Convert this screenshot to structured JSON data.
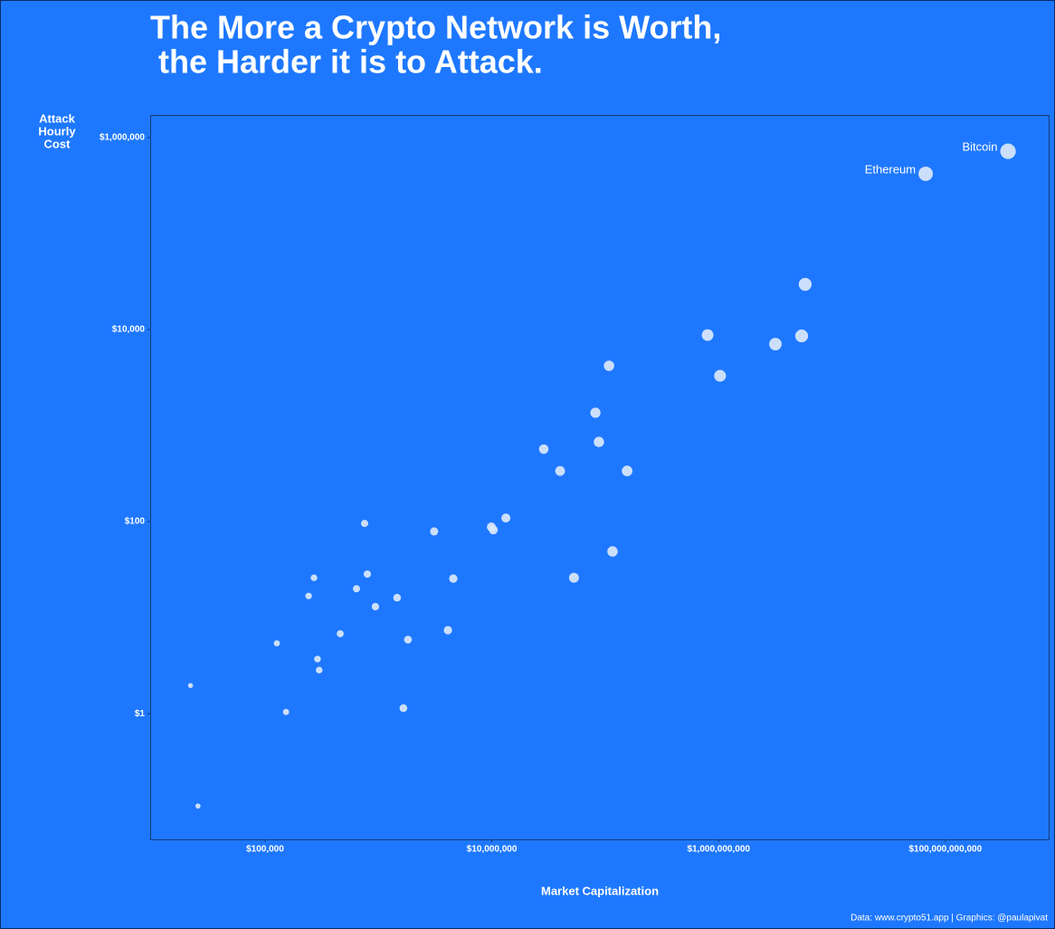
{
  "chart_data": {
    "type": "scatter",
    "title": [
      "The More a Crypto Network is Worth,",
      "the Harder it is to Attack."
    ],
    "ylabel": [
      "Attack",
      "Hourly",
      "Cost"
    ],
    "xlabel": "Market Capitalization",
    "caption": "Data: www.crypto51.app | Graphics: @paulapivat",
    "xlog": true,
    "ylog": true,
    "color": "#dbe8fa",
    "x": [
      357000000000,
      67000000000,
      5800000000,
      800000000,
      3170000000,
      5400000000,
      1030000000,
      108000000,
      82000000,
      88000000,
      28700000,
      40000000,
      156000000,
      13300000,
      9900000,
      10300000,
      116000000,
      53000000,
      3100000,
      4570000,
      755000,
      798000,
      270000,
      242000,
      640000,
      1460000,
      940000,
      4100000,
      460000,
      1820000,
      127000,
      290000,
      300000,
      22000,
      153000,
      1660000,
      25600
    ],
    "y": [
      720000,
      420000,
      29600,
      8770,
      7060,
      8590,
      3300,
      4200,
      1360,
      676,
      569,
      337,
      337,
      109,
      88,
      82,
      48.9,
      26,
      79,
      25.5,
      95.7,
      28.4,
      26,
      16.8,
      20,
      16.1,
      13,
      7.4,
      6.8,
      5.9,
      5.4,
      3.7,
      2.84,
      1.96,
      1.04,
      1.14,
      0.109
    ],
    "point_labels": [
      "Bitcoin",
      "Ethereum",
      null,
      null,
      null,
      null,
      null,
      null,
      null,
      null,
      null,
      null,
      null,
      null,
      null,
      null,
      null,
      null,
      null,
      null,
      null,
      null,
      null,
      null,
      null,
      null,
      null,
      null,
      null,
      null,
      null,
      null,
      null,
      null,
      null,
      null,
      null
    ],
    "xlim": [
      9700,
      830000000000
    ],
    "ylim": [
      0.049,
      1720000
    ],
    "xticks": [
      {
        "value": 100000,
        "label": "$100,000"
      },
      {
        "value": 10000000,
        "label": "$10,000,000"
      },
      {
        "value": 1000000000,
        "label": "$1,000,000,000"
      },
      {
        "value": 100000000000,
        "label": "$100,000,000,000"
      }
    ],
    "yticks": [
      {
        "value": 1,
        "label": "$1"
      },
      {
        "value": 100,
        "label": "$100"
      },
      {
        "value": 10000,
        "label": "$10,000"
      },
      {
        "value": 1000000,
        "label": "$1,000,000"
      }
    ]
  }
}
